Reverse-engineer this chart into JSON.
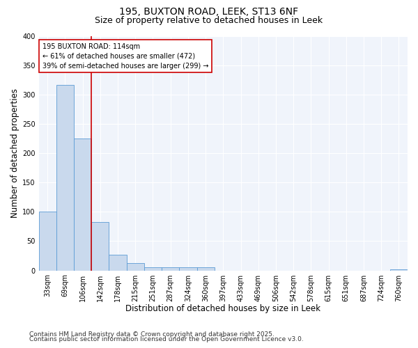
{
  "title_line1": "195, BUXTON ROAD, LEEK, ST13 6NF",
  "title_line2": "Size of property relative to detached houses in Leek",
  "xlabel": "Distribution of detached houses by size in Leek",
  "ylabel": "Number of detached properties",
  "categories": [
    "33sqm",
    "69sqm",
    "106sqm",
    "142sqm",
    "178sqm",
    "215sqm",
    "251sqm",
    "287sqm",
    "324sqm",
    "360sqm",
    "397sqm",
    "433sqm",
    "469sqm",
    "506sqm",
    "542sqm",
    "578sqm",
    "615sqm",
    "651sqm",
    "687sqm",
    "724sqm",
    "760sqm"
  ],
  "values": [
    100,
    316,
    225,
    82,
    27,
    13,
    5,
    5,
    5,
    6,
    0,
    0,
    0,
    0,
    0,
    0,
    0,
    0,
    0,
    0,
    2
  ],
  "bar_color": "#c9d9ed",
  "bar_edge_color": "#5b9bd5",
  "redline_index": 2,
  "annotation_text_line1": "195 BUXTON ROAD: 114sqm",
  "annotation_text_line2": "← 61% of detached houses are smaller (472)",
  "annotation_text_line3": "39% of semi-detached houses are larger (299) →",
  "annotation_box_color": "#ffffff",
  "annotation_box_edge": "#cc0000",
  "footnote1": "Contains HM Land Registry data © Crown copyright and database right 2025.",
  "footnote2": "Contains public sector information licensed under the Open Government Licence v3.0.",
  "ylim": [
    0,
    400
  ],
  "yticks": [
    0,
    50,
    100,
    150,
    200,
    250,
    300,
    350,
    400
  ],
  "bg_color": "#ffffff",
  "plot_bg_color": "#f0f4fb",
  "grid_color": "#ffffff",
  "title_fontsize": 10,
  "subtitle_fontsize": 9,
  "axis_label_fontsize": 8.5,
  "tick_fontsize": 7,
  "annotation_fontsize": 7,
  "footnote_fontsize": 6.5
}
